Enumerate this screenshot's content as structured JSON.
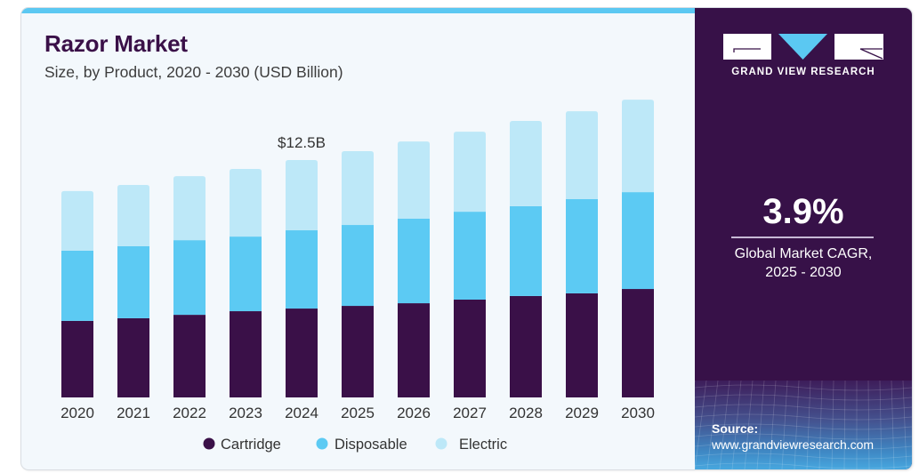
{
  "header": {
    "title": "Razor Market",
    "subtitle": "Size, by Product, 2020 - 2030 (USD Billion)"
  },
  "brand": {
    "name": "GRAND VIEW RESEARCH",
    "logo_icon": "gvr-logo-icon"
  },
  "highlight": {
    "value": "3.9%",
    "label_line1": "Global Market CAGR,",
    "label_line2": "2025 - 2030"
  },
  "source": {
    "title": "Source:",
    "url": "www.grandviewresearch.com"
  },
  "colors": {
    "cartridge": "#3a1048",
    "disposable": "#5ccaf3",
    "electric": "#bde8f8",
    "accent": "#5bc8f2",
    "panel": "#371148",
    "title": "#3a1048"
  },
  "chart_data": {
    "type": "bar",
    "stacked": true,
    "title": "Razor Market",
    "subtitle": "Size, by Product, 2020 - 2030 (USD Billion)",
    "xlabel": "",
    "ylabel": "",
    "ylim": [
      0,
      17
    ],
    "grid": false,
    "legend_position": "bottom-center",
    "categories": [
      "2020",
      "2021",
      "2022",
      "2023",
      "2024",
      "2025",
      "2026",
      "2027",
      "2028",
      "2029",
      "2030"
    ],
    "series": [
      {
        "name": "Cartridge",
        "color": "#3a1048",
        "values": [
          4.03,
          4.17,
          4.35,
          4.54,
          4.68,
          4.82,
          4.96,
          5.15,
          5.34,
          5.48,
          5.71
        ]
      },
      {
        "name": "Disposable",
        "color": "#5ccaf3",
        "values": [
          3.7,
          3.79,
          3.93,
          3.93,
          4.12,
          4.26,
          4.45,
          4.63,
          4.73,
          4.96,
          5.1
        ]
      },
      {
        "name": "Electric",
        "color": "#bde8f8",
        "values": [
          3.14,
          3.23,
          3.37,
          3.56,
          3.7,
          3.89,
          4.07,
          4.21,
          4.49,
          4.63,
          4.87
        ]
      }
    ],
    "annotations": [
      {
        "category": "2024",
        "text": "$12.5B"
      }
    ]
  }
}
